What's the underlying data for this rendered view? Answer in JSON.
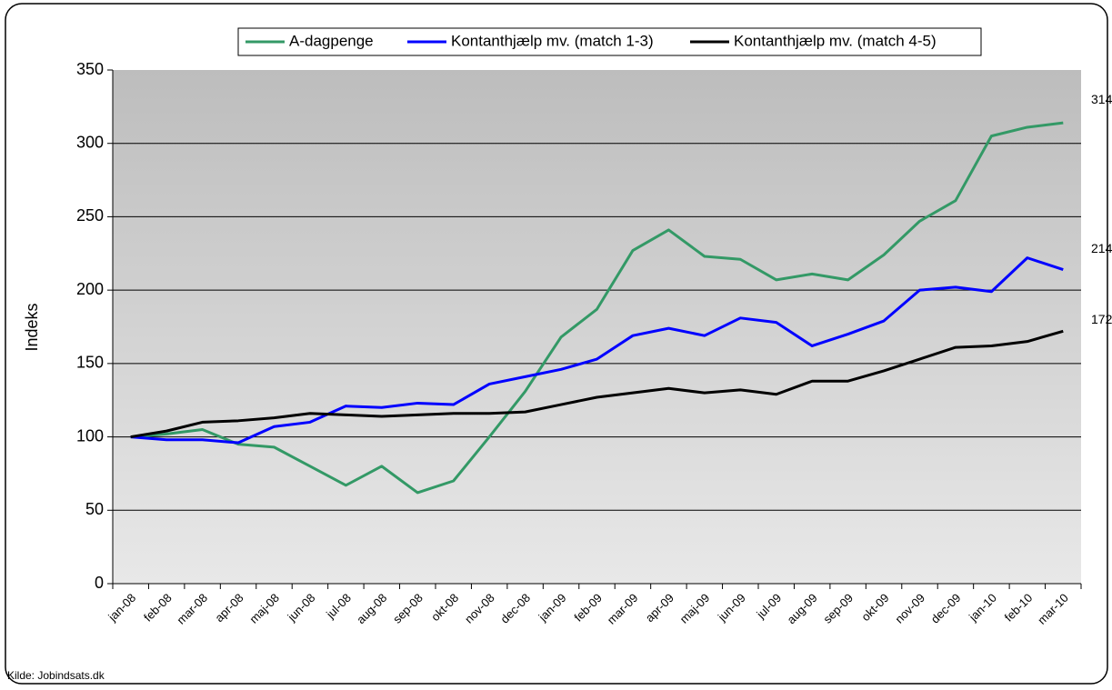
{
  "chart_data": {
    "type": "line",
    "ylabel": "Indeks",
    "source": "Kilde: Jobindsats.dk",
    "categories": [
      "jan-08",
      "feb-08",
      "mar-08",
      "apr-08",
      "maj-08",
      "jun-08",
      "jul-08",
      "aug-08",
      "sep-08",
      "okt-08",
      "nov-08",
      "dec-08",
      "jan-09",
      "feb-09",
      "mar-09",
      "apr-09",
      "maj-09",
      "jun-09",
      "jul-09",
      "aug-09",
      "sep-09",
      "okt-09",
      "nov-09",
      "dec-09",
      "jan-10",
      "feb-10",
      "mar-10"
    ],
    "series": [
      {
        "name": "A-dagpenge",
        "color": "#339966",
        "values": [
          100,
          102,
          105,
          95,
          93,
          80,
          67,
          80,
          62,
          70,
          100,
          131,
          168,
          187,
          227,
          241,
          223,
          221,
          207,
          211,
          207,
          224,
          247,
          261,
          305,
          311,
          314
        ]
      },
      {
        "name": "Kontanthjælp mv. (match 1-3)",
        "color": "#0000ff",
        "values": [
          100,
          98,
          98,
          96,
          107,
          110,
          121,
          120,
          123,
          122,
          136,
          141,
          146,
          153,
          169,
          174,
          169,
          181,
          178,
          162,
          170,
          179,
          200,
          202,
          199,
          222,
          214
        ]
      },
      {
        "name": "Kontanthjælp mv. (match 4-5)",
        "color": "#000000",
        "values": [
          100,
          104,
          110,
          111,
          113,
          116,
          115,
          114,
          115,
          116,
          116,
          117,
          122,
          127,
          130,
          133,
          130,
          132,
          129,
          138,
          138,
          145,
          153,
          161,
          162,
          165,
          172
        ]
      }
    ],
    "ylim": [
      0,
      350
    ],
    "yticks": [
      0,
      50,
      100,
      150,
      200,
      250,
      300,
      350
    ],
    "grid": true,
    "legend": "top"
  }
}
